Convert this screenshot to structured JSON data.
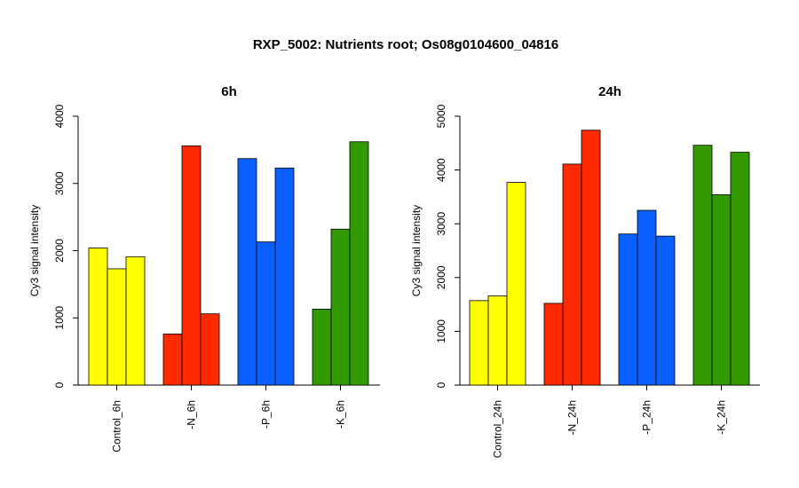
{
  "title": "RXP_5002: Nutrients root; Os08g0104600_04816",
  "chart_data": [
    {
      "type": "bar",
      "title": "6h",
      "ylabel": "Cy3 signal intensity",
      "ylim": [
        0,
        4000
      ],
      "yticks": [
        0,
        1000,
        2000,
        3000,
        4000
      ],
      "categories": [
        "Control_6h",
        "-N_6h",
        "-P_6h",
        "-K_6h"
      ],
      "colors": [
        "#ffff00",
        "#ff2a00",
        "#0a5fff",
        "#339900"
      ],
      "values": [
        [
          2040,
          1730,
          1910
        ],
        [
          760,
          3560,
          1060
        ],
        [
          3370,
          2130,
          3230
        ],
        [
          1130,
          2320,
          3620
        ]
      ]
    },
    {
      "type": "bar",
      "title": "24h",
      "ylabel": "Cy3 signal intensity",
      "ylim": [
        0,
        5000
      ],
      "yticks": [
        0,
        1000,
        2000,
        3000,
        4000,
        5000
      ],
      "categories": [
        "Control_24h",
        "-N_24h",
        "-P_24h",
        "-K_24h"
      ],
      "colors": [
        "#ffff00",
        "#ff2a00",
        "#0a5fff",
        "#339900"
      ],
      "values": [
        [
          1570,
          1660,
          3770
        ],
        [
          1520,
          4110,
          4740
        ],
        [
          2810,
          3250,
          2770
        ],
        [
          4460,
          3540,
          4330
        ]
      ]
    }
  ]
}
